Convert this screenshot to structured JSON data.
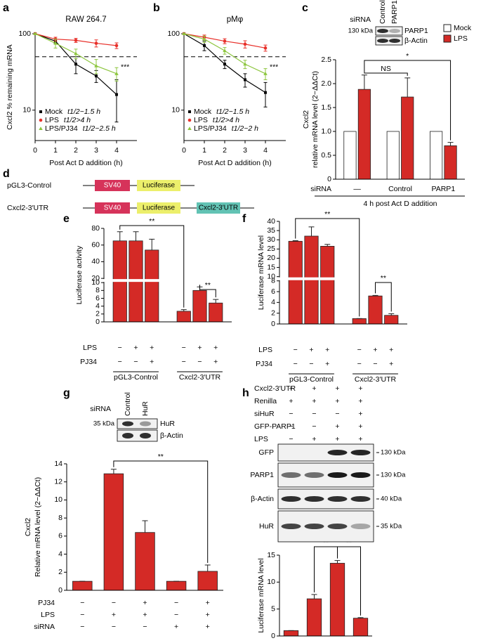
{
  "chart_data": [
    {
      "type": "line",
      "panel": "a",
      "title": "RAW 264.7",
      "ylabel": [
        "Cxcl2 % remaining mRNA"
      ],
      "xlabel": "Post Act D addition (h)",
      "x": [
        0,
        1,
        2,
        3,
        4
      ],
      "xlim": [
        0,
        5
      ],
      "xticks": [
        0,
        1,
        2,
        3,
        4
      ],
      "ylim": [
        4,
        100
      ],
      "yticks": [
        10,
        100
      ],
      "log": true,
      "reference": 50,
      "series": [
        {
          "name": "Mock",
          "label": "t1/2~1.5 h",
          "color": "#000000",
          "values": [
            100,
            80,
            40,
            28,
            16
          ],
          "errors": [
            0,
            5,
            10,
            5,
            9
          ]
        },
        {
          "name": "LPS",
          "label": "t1/2>4 h",
          "color": "#e8302a",
          "values": [
            100,
            85,
            82,
            75,
            70
          ],
          "errors": [
            0,
            5,
            5,
            8,
            6
          ]
        },
        {
          "name": "LPS/PJ34",
          "label": "t1/2~2.5 h",
          "color": "#8dc63f",
          "values": [
            100,
            75,
            55,
            38,
            30
          ],
          "errors": [
            0,
            10,
            8,
            8,
            6
          ]
        }
      ],
      "annotations": [
        "***"
      ]
    },
    {
      "type": "line",
      "panel": "b",
      "title": "pMφ",
      "xlabel": "Post Act D addition (h)",
      "x": [
        0,
        1,
        2,
        3,
        4
      ],
      "xlim": [
        0,
        5
      ],
      "xticks": [
        0,
        1,
        2,
        3,
        4
      ],
      "ylim": [
        4,
        100
      ],
      "yticks": [
        10,
        100
      ],
      "log": true,
      "reference": 50,
      "series": [
        {
          "name": "Mock",
          "label": "t1/2~1.5 h",
          "color": "#000000",
          "values": [
            100,
            70,
            40,
            25,
            17
          ],
          "errors": [
            0,
            10,
            5,
            5,
            6
          ]
        },
        {
          "name": "LPS",
          "label": "t1/2>4 h",
          "color": "#e8302a",
          "values": [
            100,
            90,
            80,
            73,
            65
          ],
          "errors": [
            0,
            6,
            6,
            8,
            6
          ]
        },
        {
          "name": "LPS/PJ34",
          "label": "t1/2~2 h",
          "color": "#8dc63f",
          "values": [
            100,
            85,
            60,
            40,
            30
          ],
          "errors": [
            0,
            8,
            6,
            5,
            5
          ]
        }
      ],
      "annotations": [
        "***"
      ]
    },
    {
      "type": "bar",
      "panel": "c",
      "ylabel": [
        "Cxcl2",
        "relative mRNA level (2−ΔΔCt)"
      ],
      "category_title": "siRNA",
      "categories": [
        "—",
        "Control",
        "PARP1"
      ],
      "xlabel": "4 h post Act D addition",
      "ylim": [
        0,
        2.5
      ],
      "yticks": [
        0,
        0.5,
        {
          "value": 1,
          "label": "1.0"
        },
        1.5,
        {
          "value": 2,
          "label": "2.0"
        },
        2.5
      ],
      "series": [
        {
          "name": "Mock",
          "color": "#ffffff",
          "values": [
            1,
            1,
            1
          ]
        },
        {
          "name": "LPS",
          "color": "#d42a26",
          "values": [
            1.88,
            1.72,
            0.7
          ],
          "errors": [
            0.3,
            0.4,
            0.07
          ]
        }
      ],
      "annotations": [
        "NS",
        "*"
      ],
      "blot": {
        "title": "siRNA",
        "lanes": [
          "Control",
          "PARP1"
        ],
        "rows": [
          "PARP1",
          "β-Actin"
        ],
        "markers": [
          "130 kDa"
        ]
      }
    },
    {
      "type": "bar",
      "panel": "e",
      "ylabel": [
        "Luciferase activity"
      ],
      "ylim": [
        0,
        80
      ],
      "ybreak": [
        10,
        20
      ],
      "yticks": [
        0,
        2,
        4,
        6,
        8,
        10,
        20,
        40,
        60,
        80
      ],
      "color": "#d42a26",
      "values": [
        65,
        65,
        54,
        2.7,
        8,
        4.8
      ],
      "errors": [
        11,
        11,
        13,
        0.4,
        0.9,
        0.9
      ],
      "conditions": [
        {
          "name": "LPS",
          "values": [
            "−",
            "+",
            "+",
            "−",
            "+",
            "+"
          ]
        },
        {
          "name": "PJ34",
          "values": [
            "−",
            "−",
            "+",
            "−",
            "−",
            "+"
          ]
        }
      ],
      "group_labels": [
        "pGL3-Control",
        "Cxcl2-3′UTR"
      ],
      "annotations": [
        "**",
        "**"
      ]
    },
    {
      "type": "bar",
      "panel": "f",
      "ylabel": [
        "Luciferase mRNA level"
      ],
      "ylim": [
        0,
        40
      ],
      "ybreak": [
        8,
        10
      ],
      "yticks": [
        0,
        2,
        4,
        6,
        8,
        10,
        15,
        20,
        25,
        30,
        35,
        40
      ],
      "color": "#d42a26",
      "values": [
        29.2,
        32,
        26.5,
        1,
        5.2,
        1.6
      ],
      "errors": [
        0.3,
        5,
        1,
        0,
        0.1,
        0.3
      ],
      "conditions": [
        {
          "name": "LPS",
          "values": [
            "−",
            "+",
            "+",
            "−",
            "+",
            "+"
          ]
        },
        {
          "name": "PJ34",
          "values": [
            "−",
            "−",
            "+",
            "−",
            "−",
            "+"
          ]
        }
      ],
      "group_labels": [
        "pGL3-Control",
        "Cxcl2-3′UTR"
      ],
      "annotations": [
        "**",
        "**"
      ]
    },
    {
      "type": "bar",
      "panel": "g",
      "ylabel": [
        "Cxcl2",
        "Relative mRNA level (2−ΔΔCt)"
      ],
      "ylim": [
        0,
        14
      ],
      "yticks": [
        0,
        2,
        4,
        6,
        8,
        10,
        12,
        14
      ],
      "color": "#d42a26",
      "values": [
        1,
        12.9,
        6.4,
        1,
        2.1
      ],
      "errors": [
        0,
        0.5,
        1.3,
        0,
        0.7
      ],
      "conditions": [
        {
          "name": "PJ34",
          "values": [
            "−",
            "−",
            "+",
            "−",
            "+"
          ]
        },
        {
          "name": "LPS",
          "values": [
            "−",
            "+",
            "+",
            "−",
            "+"
          ]
        },
        {
          "name": "siRNA",
          "values": [
            "−",
            "−",
            "−",
            "+",
            "+"
          ]
        }
      ],
      "annotations": [
        "**"
      ],
      "blot": {
        "title": "siRNA",
        "lanes": [
          "Control",
          "HuR"
        ],
        "rows": [
          "HuR",
          "β-Actin"
        ],
        "markers": [
          "35 kDa"
        ]
      }
    },
    {
      "type": "bar",
      "panel": "h",
      "ylabel": [
        "Luciferase mRNA level"
      ],
      "ylim": [
        0,
        15
      ],
      "yticks": [
        0,
        5,
        10,
        15
      ],
      "color": "#d42a26",
      "values": [
        1,
        6.9,
        13.5,
        3.3
      ],
      "errors": [
        0,
        0.8,
        0.5,
        0.1
      ],
      "conditions": [
        {
          "name": "Cxcl2-3′UTR",
          "values": [
            "+",
            "+",
            "+",
            "+"
          ]
        },
        {
          "name": "Renilla",
          "values": [
            "+",
            "+",
            "+",
            "+"
          ]
        },
        {
          "name": "siHuR",
          "values": [
            "−",
            "−",
            "−",
            "+"
          ]
        },
        {
          "name": "GFP-PARP1",
          "values": [
            "−",
            "−",
            "+",
            "+"
          ]
        },
        {
          "name": "LPS",
          "values": [
            "−",
            "+",
            "+",
            "+"
          ]
        }
      ],
      "annotations": [
        "**",
        "**"
      ],
      "blot": {
        "rows": [
          "GFP",
          "PARP1",
          "β-Actin",
          "HuR"
        ],
        "markers": [
          "130 kDa",
          "130 kDa",
          "40 kDa",
          "35 kDa"
        ]
      }
    }
  ],
  "diagram": {
    "panel": "d",
    "constructs": [
      {
        "name": "pGL3-Control",
        "elements": [
          "SV40",
          "Luciferase"
        ]
      },
      {
        "name": "Cxcl2-3′UTR",
        "elements": [
          "SV40",
          "Luciferase",
          "Cxcl2-3′UTR"
        ]
      }
    ]
  }
}
